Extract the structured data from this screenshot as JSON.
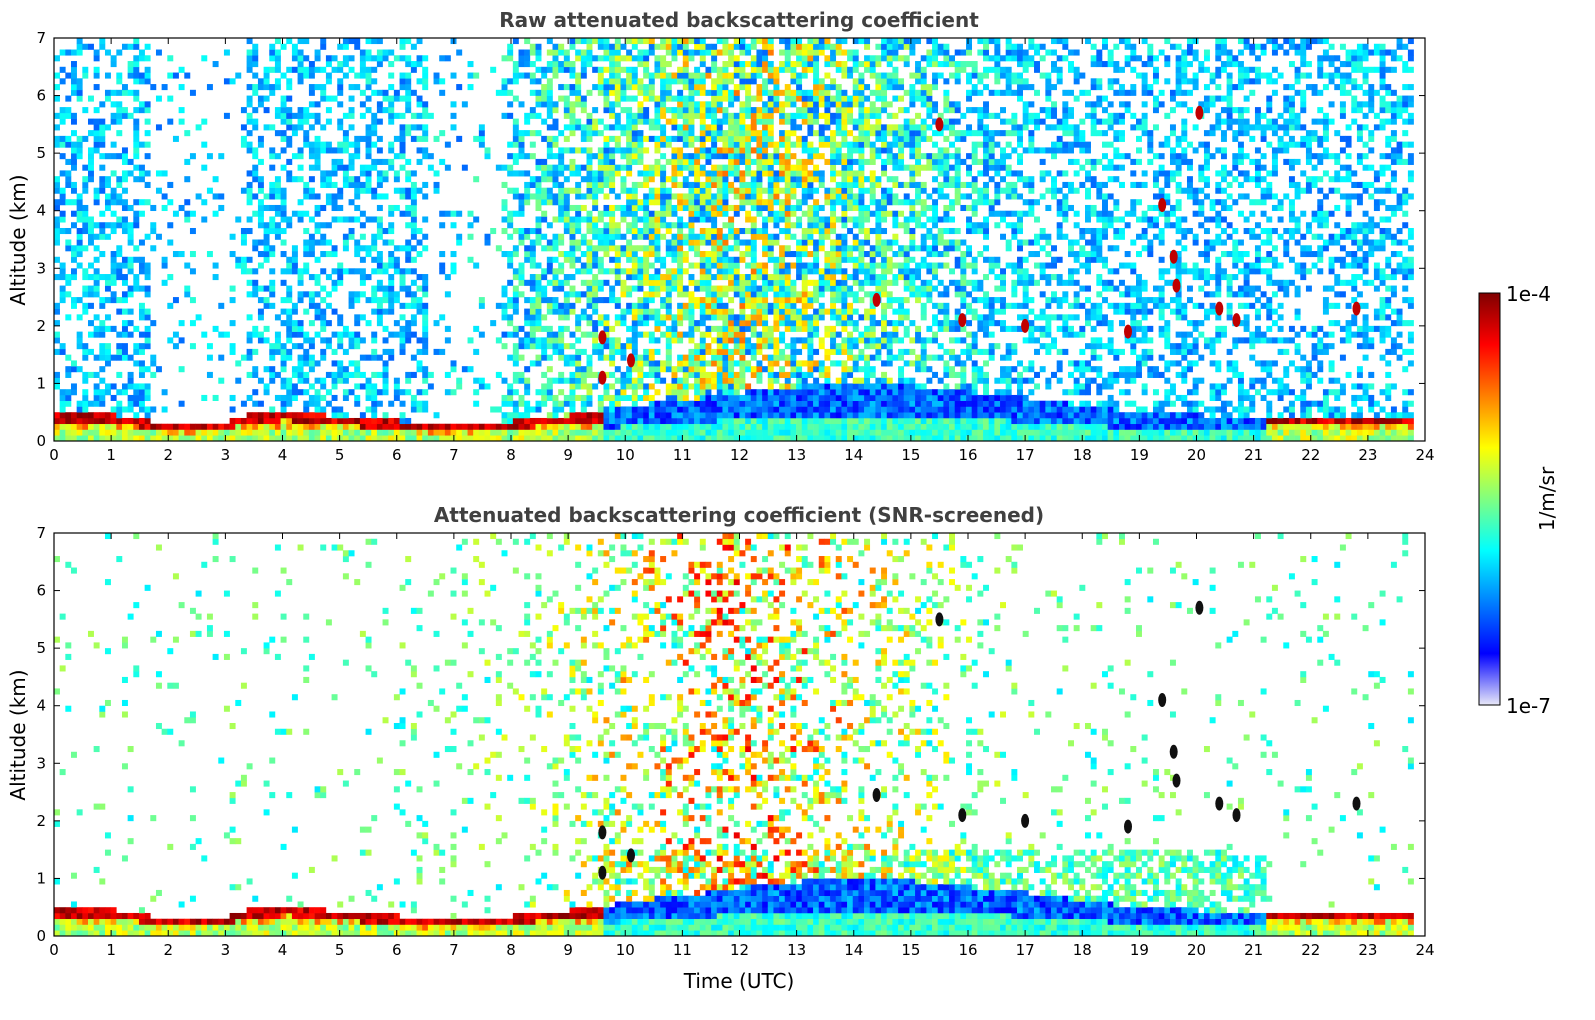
{
  "chart_data": [
    {
      "type": "heatmap",
      "title": "Raw attenuated backscattering coefficient",
      "ylabel": "Altitude (km)",
      "xlabel": "",
      "xlim": [
        0,
        24
      ],
      "ylim": [
        0,
        7
      ],
      "x_ticks": [
        0,
        1,
        2,
        3,
        4,
        5,
        6,
        7,
        8,
        9,
        10,
        11,
        12,
        13,
        14,
        15,
        16,
        17,
        18,
        19,
        20,
        21,
        22,
        23,
        24
      ],
      "y_ticks": [
        0,
        1,
        2,
        3,
        4,
        5,
        6,
        7
      ],
      "screened": false,
      "boundary_layer_top_km": [
        [
          0,
          0.5
        ],
        [
          1,
          0.45
        ],
        [
          2,
          0.3
        ],
        [
          3,
          0.35
        ],
        [
          3.5,
          0.5
        ],
        [
          4,
          0.55
        ],
        [
          5,
          0.4
        ],
        [
          6,
          0.35
        ],
        [
          7,
          0.3
        ],
        [
          8,
          0.35
        ],
        [
          9,
          0.45
        ],
        [
          9.6,
          0.5
        ],
        [
          10,
          0.6
        ],
        [
          11,
          0.7
        ],
        [
          12,
          0.85
        ],
        [
          13,
          0.95
        ],
        [
          14,
          1.0
        ],
        [
          15,
          0.95
        ],
        [
          16,
          0.85
        ],
        [
          17,
          0.75
        ],
        [
          18,
          0.6
        ],
        [
          19,
          0.5
        ],
        [
          20,
          0.45
        ],
        [
          21,
          0.4
        ],
        [
          22,
          0.4
        ],
        [
          23,
          0.4
        ],
        [
          23.8,
          0.4
        ]
      ],
      "features": [
        {
          "t": 15.5,
          "alt": 5.5
        },
        {
          "t": 20.05,
          "alt": 5.7
        },
        {
          "t": 19.4,
          "alt": 4.1
        },
        {
          "t": 19.6,
          "alt": 3.2
        },
        {
          "t": 19.65,
          "alt": 2.7
        },
        {
          "t": 14.4,
          "alt": 2.45
        },
        {
          "t": 20.4,
          "alt": 2.3
        },
        {
          "t": 20.7,
          "alt": 2.1
        },
        {
          "t": 22.8,
          "alt": 2.3
        },
        {
          "t": 15.9,
          "alt": 2.1
        },
        {
          "t": 18.8,
          "alt": 1.9
        },
        {
          "t": 17.0,
          "alt": 2.0
        },
        {
          "t": 9.6,
          "alt": 1.8
        },
        {
          "t": 10.1,
          "alt": 1.4
        },
        {
          "t": 9.6,
          "alt": 1.1
        }
      ]
    },
    {
      "type": "heatmap",
      "title": "Attenuated backscattering coefficient (SNR-screened)",
      "ylabel": "Altitude (km)",
      "xlabel": "Time (UTC)",
      "xlim": [
        0,
        24
      ],
      "ylim": [
        0,
        7
      ],
      "x_ticks": [
        0,
        1,
        2,
        3,
        4,
        5,
        6,
        7,
        8,
        9,
        10,
        11,
        12,
        13,
        14,
        15,
        16,
        17,
        18,
        19,
        20,
        21,
        22,
        23,
        24
      ],
      "y_ticks": [
        0,
        1,
        2,
        3,
        4,
        5,
        6,
        7
      ],
      "screened": true
    }
  ],
  "colorbar": {
    "max_label": "1e-4",
    "min_label": "1e-7",
    "label": "1/m/sr",
    "colormap": "jet",
    "colors": [
      "#e8e8f8",
      "#0000ff",
      "#0080ff",
      "#00ffff",
      "#80ff80",
      "#ffff00",
      "#ff8000",
      "#ff0000",
      "#800000"
    ]
  }
}
